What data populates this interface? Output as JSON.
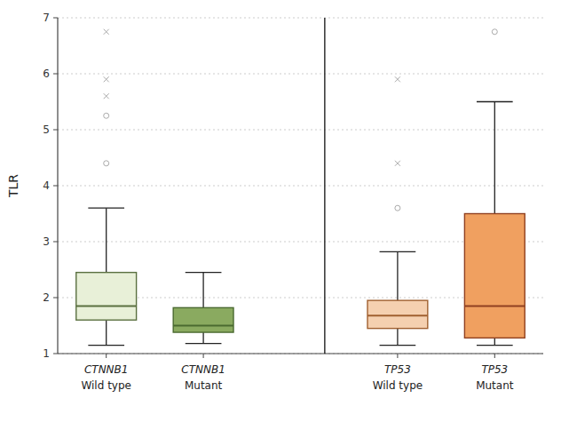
{
  "chart_data": {
    "type": "box",
    "title": "",
    "ylabel": "TLR",
    "ylim": [
      1,
      7
    ],
    "yticks": [
      1,
      2,
      3,
      4,
      5,
      6,
      7
    ],
    "grid": true,
    "category_groups": [
      "CTNNB1",
      "CTNNB1",
      "TP53",
      "TP53"
    ],
    "categories": [
      "Wild type",
      "Mutant",
      "Wild type",
      "Mutant"
    ],
    "outlier_color": "#aaaaaa",
    "boxes": [
      {
        "q1": 1.6,
        "median": 1.85,
        "q3": 2.45,
        "whisker_low": 1.15,
        "whisker_high": 3.6,
        "outliers_circle": [
          4.4,
          5.25
        ],
        "outliers_x": [
          5.6,
          5.9,
          6.75
        ],
        "color": "#e8f0d8",
        "edge_color": "#5a7040"
      },
      {
        "q1": 1.38,
        "median": 1.5,
        "q3": 1.82,
        "whisker_low": 1.18,
        "whisker_high": 2.45,
        "outliers_circle": [],
        "outliers_x": [],
        "color": "#8aaa60",
        "edge_color": "#4a6a30"
      },
      {
        "q1": 1.45,
        "median": 1.68,
        "q3": 1.95,
        "whisker_low": 1.15,
        "whisker_high": 2.82,
        "outliers_circle": [
          3.6
        ],
        "outliers_x": [
          4.4,
          5.9
        ],
        "color": "#f5d0b0",
        "edge_color": "#a06030"
      },
      {
        "q1": 1.28,
        "median": 1.85,
        "q3": 3.5,
        "whisker_low": 1.15,
        "whisker_high": 5.5,
        "outliers_circle": [
          6.75
        ],
        "outliers_x": [],
        "color": "#f0a060",
        "edge_color": "#904020"
      }
    ]
  }
}
